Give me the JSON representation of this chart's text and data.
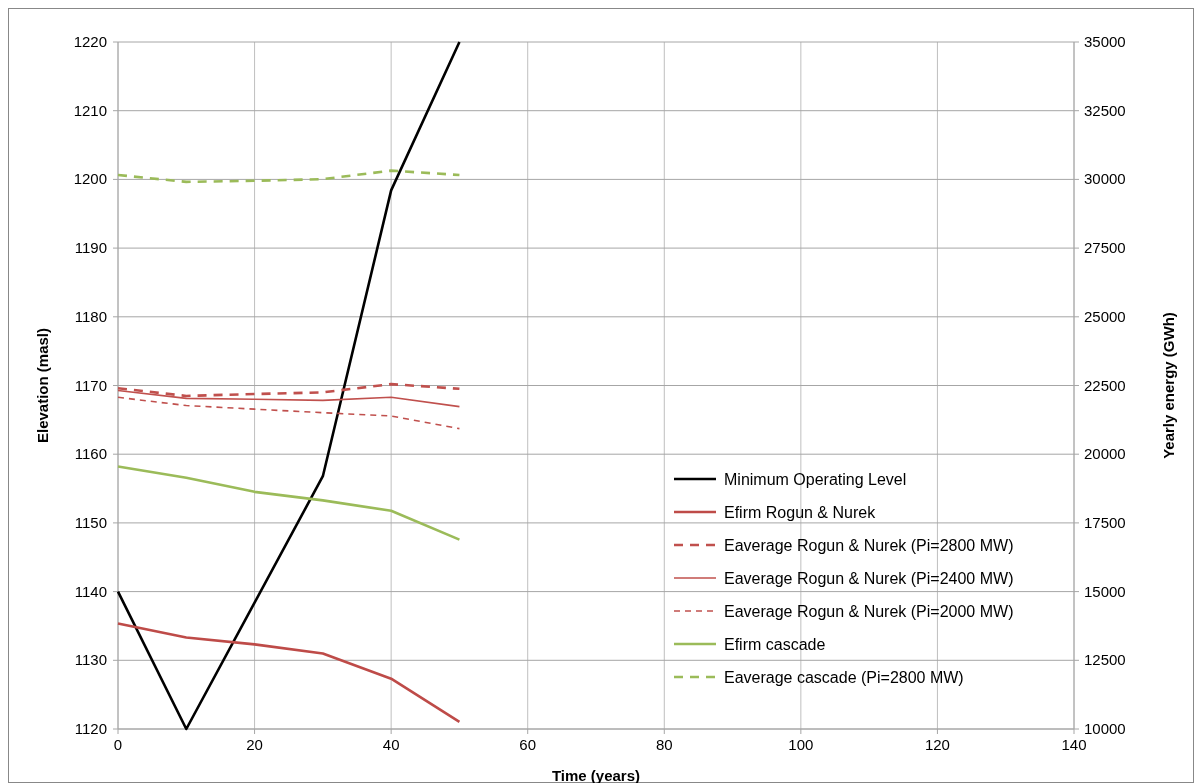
{
  "chart_data": {
    "type": "line",
    "xlabel": "Time (years)",
    "ylabel": "Elevation (masl)",
    "y2label": "Yearly energy (GWh)",
    "x": [
      0,
      10,
      20,
      30,
      40,
      50
    ],
    "xlim": [
      0,
      140
    ],
    "xticks": [
      0,
      20,
      40,
      60,
      80,
      100,
      120,
      140
    ],
    "ylim": [
      1120,
      1220
    ],
    "yticks": [
      1120,
      1130,
      1140,
      1150,
      1160,
      1170,
      1180,
      1190,
      1200,
      1210,
      1220
    ],
    "y2lim": [
      10000,
      35000
    ],
    "y2ticks": [
      10000,
      12500,
      15000,
      17500,
      20000,
      22500,
      25000,
      27500,
      30000,
      32500,
      35000
    ],
    "grid": true,
    "legend": "bottom right",
    "marker": "none",
    "series": [
      {
        "name": "Minimum Operating Level",
        "color": "#000000",
        "line_style": "solid",
        "values": [
          1140,
          1120,
          1138.4,
          1156.8,
          1198.4,
          1220
        ]
      },
      {
        "name": "Efirm Rogun & Nurek",
        "color": "#be4b48",
        "line_style": "solid",
        "axis": "y2",
        "values": [
          13840,
          13330,
          13080,
          12750,
          11830,
          10260
        ]
      },
      {
        "name": "Eaverage Rogun & Nurek (Pi=2800 MW)",
        "color": "#c0504d",
        "line_style": "dashed",
        "axis": "y2",
        "values": [
          22400,
          22120,
          22190,
          22250,
          22550,
          22380
        ]
      },
      {
        "name": "Eaverage Rogun & Nurek (Pi=2400 MW)",
        "color": "#c0504d",
        "line_style": "solid",
        "axis": "y2",
        "values": [
          22320,
          22030,
          22000,
          21960,
          22070,
          21730
        ]
      },
      {
        "name": "Eaverage Rogun & Nurek (Pi=2000 MW)",
        "color": "#c0504d",
        "line_style": "dashed",
        "axis": "y2",
        "values": [
          22070,
          21770,
          21640,
          21510,
          21390,
          20930
        ]
      },
      {
        "name": "Efirm cascade",
        "color": "#9bbb59",
        "line_style": "solid",
        "axis": "y2",
        "values": [
          19550,
          19140,
          18630,
          18320,
          17940,
          16890
        ]
      },
      {
        "name": "Eaverage cascade (Pi=2800 MW)",
        "color": "#9bbb59",
        "line_style": "dashed",
        "axis": "y2",
        "values": [
          30160,
          29910,
          29950,
          30010,
          30320,
          30160
        ]
      }
    ]
  }
}
